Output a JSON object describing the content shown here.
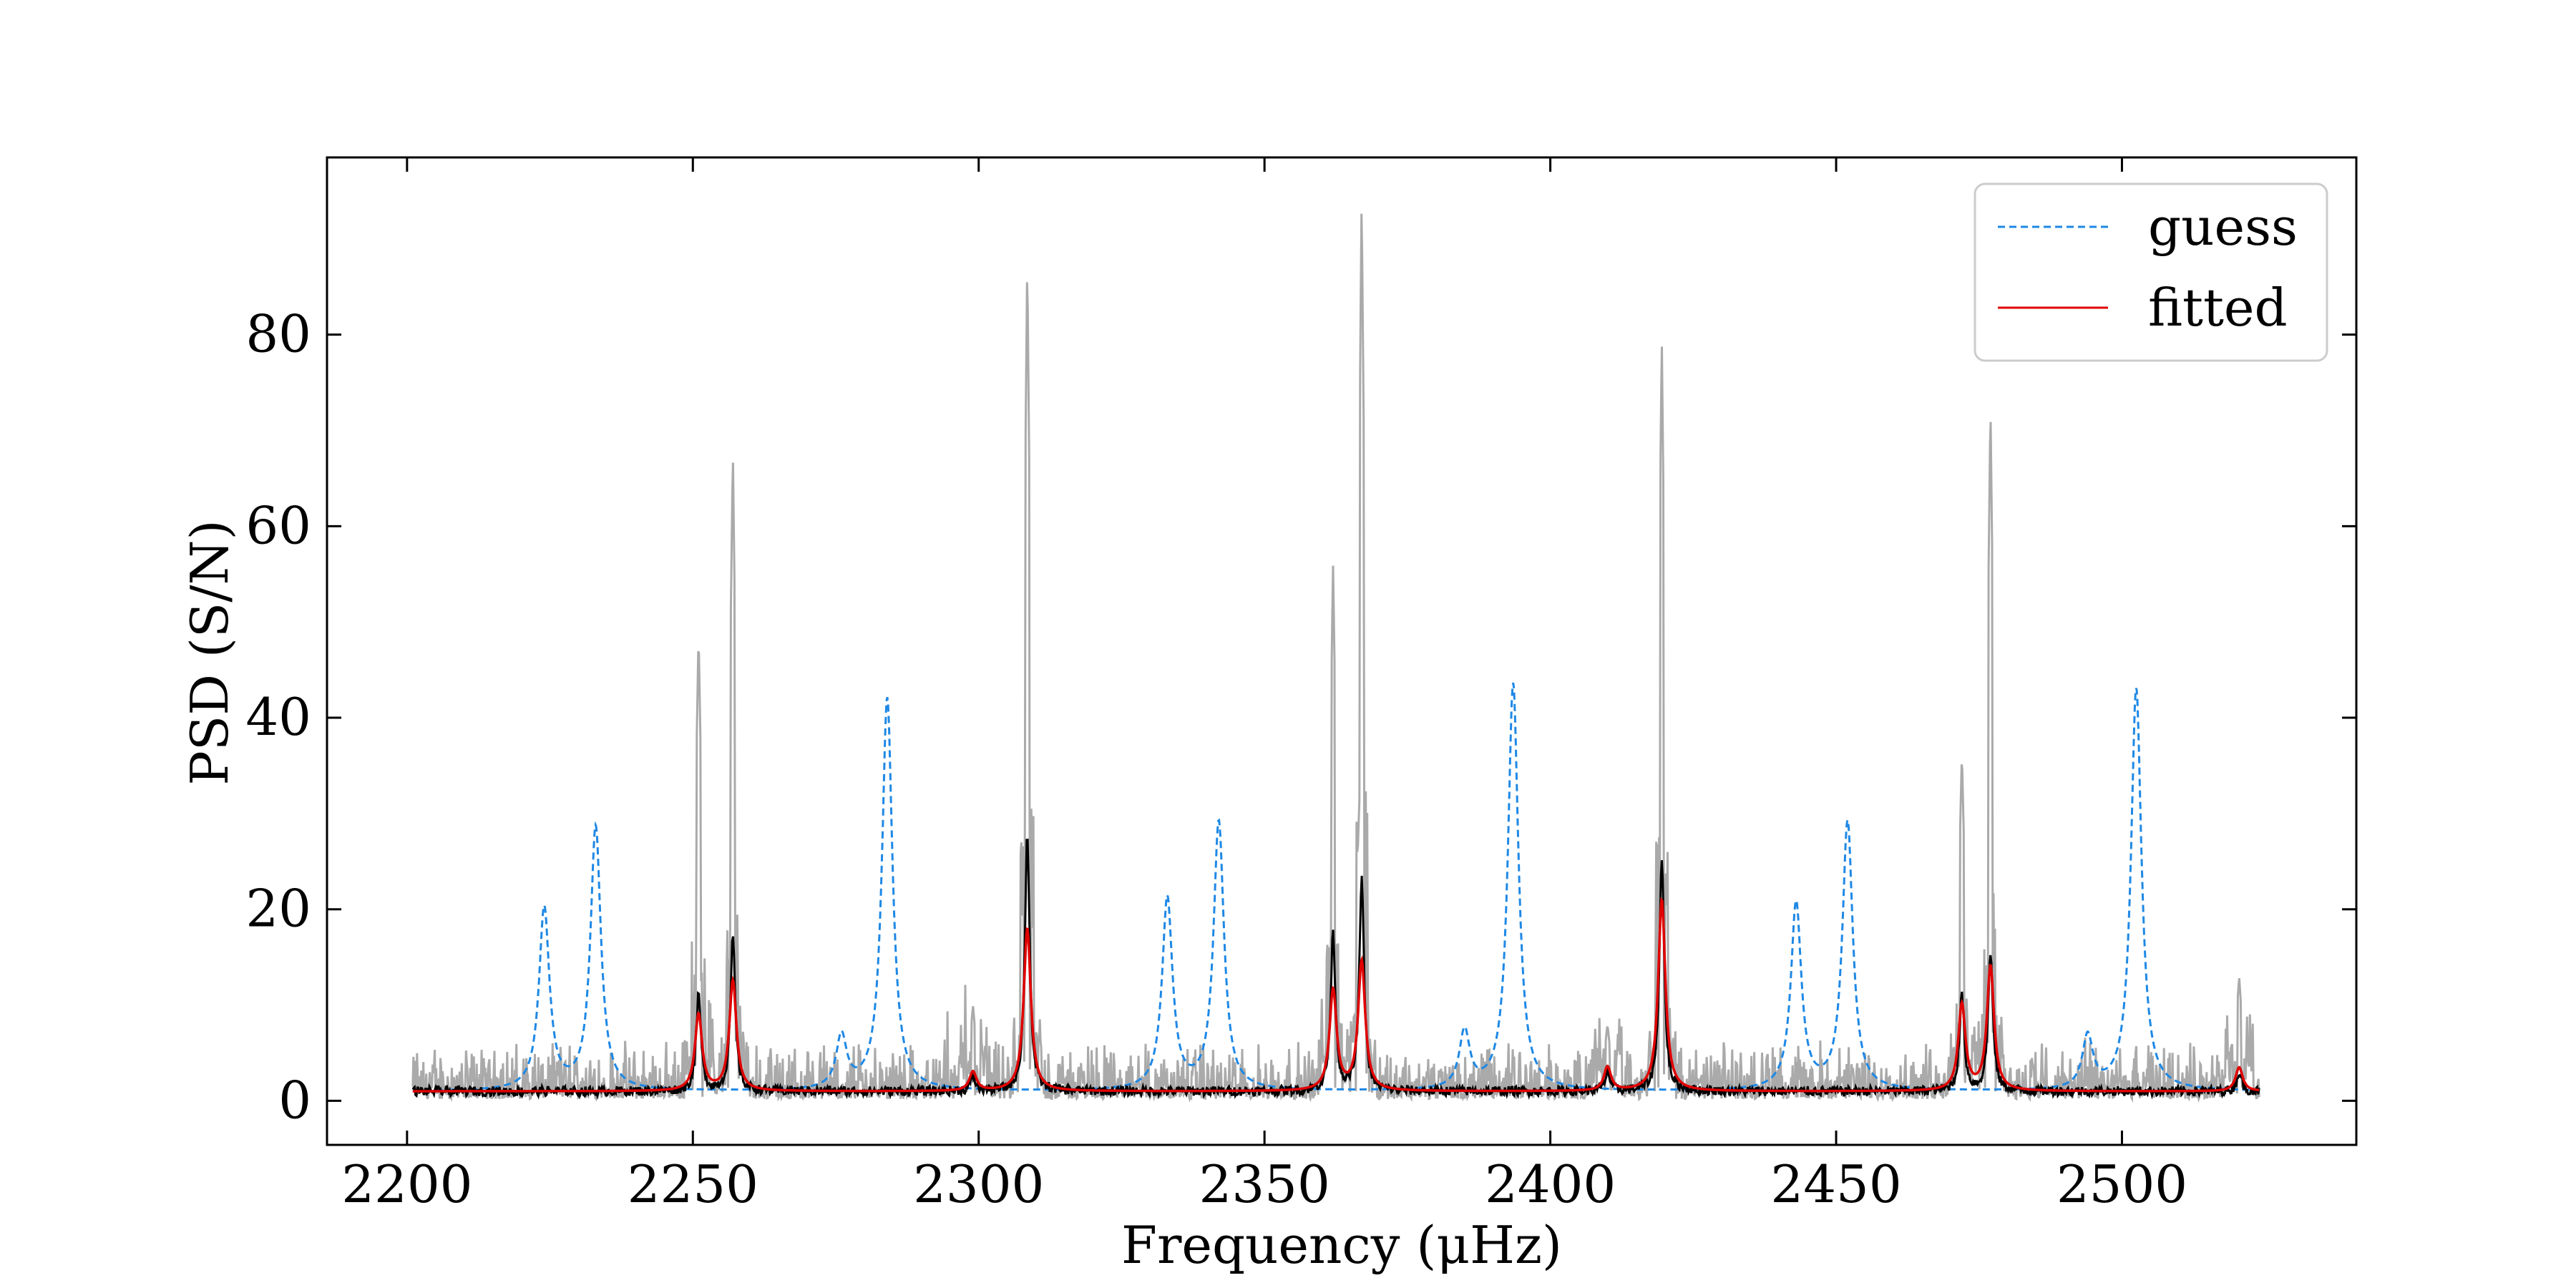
{
  "chart_data": {
    "type": "line",
    "title": "",
    "xlabel": "Frequency (μHz)",
    "ylabel": "PSD (S/N)",
    "xlim": [
      2186,
      2541
    ],
    "ylim": [
      -4.6,
      98.5
    ],
    "x_ticks": [
      2200,
      2250,
      2300,
      2350,
      2400,
      2450,
      2500
    ],
    "y_ticks": [
      0,
      20,
      40,
      60,
      80
    ],
    "grid": false,
    "legend_position": "top-right",
    "x_range": [
      2201,
      2524
    ],
    "baseline": 1.0,
    "colors": {
      "raw": "#aaaaaa",
      "smoothed": "#000000",
      "guess": "#1e88e5",
      "fitted": "#e00000"
    },
    "series": [
      {
        "name": "guess",
        "style": "dashed",
        "peaks": [
          {
            "freq": 2224,
            "height": 20.0
          },
          {
            "freq": 2233,
            "height": 28.5
          },
          {
            "freq": 2276,
            "height": 6.5
          },
          {
            "freq": 2284,
            "height": 42.0
          },
          {
            "freq": 2333,
            "height": 21.0
          },
          {
            "freq": 2342,
            "height": 29.0
          },
          {
            "freq": 2385,
            "height": 7.0
          },
          {
            "freq": 2393.5,
            "height": 43.5
          },
          {
            "freq": 2443,
            "height": 20.5
          },
          {
            "freq": 2452,
            "height": 29.0
          },
          {
            "freq": 2494,
            "height": 6.5
          },
          {
            "freq": 2502.5,
            "height": 43.0
          }
        ]
      },
      {
        "name": "fitted",
        "style": "solid",
        "peaks": [
          {
            "freq": 2251,
            "height": 9.0
          },
          {
            "freq": 2257,
            "height": 12.5
          },
          {
            "freq": 2299,
            "height": 3.0
          },
          {
            "freq": 2308.5,
            "height": 18.0
          },
          {
            "freq": 2362,
            "height": 11.5
          },
          {
            "freq": 2367,
            "height": 14.5
          },
          {
            "freq": 2410,
            "height": 3.5
          },
          {
            "freq": 2419.5,
            "height": 21.0
          },
          {
            "freq": 2472,
            "height": 10.0
          },
          {
            "freq": 2477,
            "height": 14.0
          },
          {
            "freq": 2520.5,
            "height": 3.5
          }
        ]
      },
      {
        "style": "smoothed",
        "peaks": [
          {
            "freq": 2251,
            "height": 11.0
          },
          {
            "freq": 2257,
            "height": 17.0
          },
          {
            "freq": 2299,
            "height": 2.5
          },
          {
            "freq": 2308.5,
            "height": 28.0
          },
          {
            "freq": 2362,
            "height": 17.5
          },
          {
            "freq": 2367,
            "height": 23.0
          },
          {
            "freq": 2410,
            "height": 3.0
          },
          {
            "freq": 2419.5,
            "height": 25.5
          },
          {
            "freq": 2472,
            "height": 11.0
          },
          {
            "freq": 2477,
            "height": 15.5
          },
          {
            "freq": 2520.5,
            "height": 3.0
          }
        ]
      },
      {
        "style": "raw",
        "peaks": [
          {
            "freq": 2251,
            "height": 49.0
          },
          {
            "freq": 2257,
            "height": 68.0
          },
          {
            "freq": 2299,
            "height": 10.0
          },
          {
            "freq": 2308.5,
            "height": 88.0
          },
          {
            "freq": 2362,
            "height": 56.0
          },
          {
            "freq": 2367,
            "height": 94.5
          },
          {
            "freq": 2410,
            "height": 8.0
          },
          {
            "freq": 2419.5,
            "height": 80.0
          },
          {
            "freq": 2472,
            "height": 36.5
          },
          {
            "freq": 2477,
            "height": 73.0
          },
          {
            "freq": 2520.5,
            "height": 13.0
          }
        ]
      }
    ]
  },
  "legend": {
    "guess_label": "guess",
    "fitted_label": "fitted"
  }
}
